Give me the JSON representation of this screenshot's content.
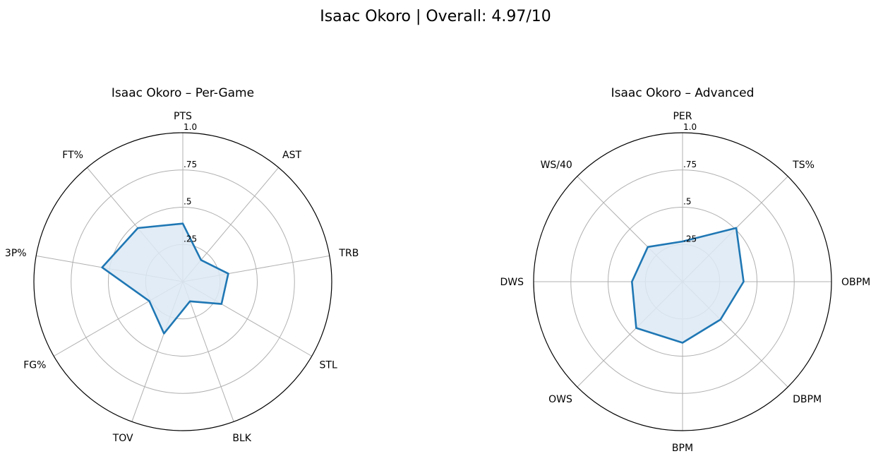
{
  "figure": {
    "title": "Isaac Okoro | Overall: 4.97/10"
  },
  "chart_data": [
    {
      "type": "radar",
      "title": "Isaac Okoro – Per-Game",
      "categories": [
        "PTS",
        "AST",
        "TRB",
        "STL",
        "BLK",
        "TOV",
        "FG%",
        "3P%",
        "FT%"
      ],
      "values": [
        0.39,
        0.19,
        0.31,
        0.3,
        0.14,
        0.37,
        0.26,
        0.55,
        0.47
      ],
      "radial_ticks": [
        ".25",
        ".5",
        ".75",
        "1.0"
      ],
      "rlim": [
        0,
        1
      ],
      "grid": true,
      "line_color": "#1f77b4",
      "fill_color": "#dce9f5"
    },
    {
      "type": "radar",
      "title": "Isaac Okoro – Advanced",
      "categories": [
        "PER",
        "TS%",
        "OBPM",
        "DBPM",
        "BPM",
        "OWS",
        "DWS",
        "WS/40"
      ],
      "values": [
        0.27,
        0.51,
        0.41,
        0.36,
        0.41,
        0.44,
        0.34,
        0.33
      ],
      "radial_ticks": [
        ".25",
        ".5",
        ".75",
        "1.0"
      ],
      "rlim": [
        0,
        1
      ],
      "grid": true,
      "line_color": "#1f77b4",
      "fill_color": "#dce9f5"
    }
  ]
}
